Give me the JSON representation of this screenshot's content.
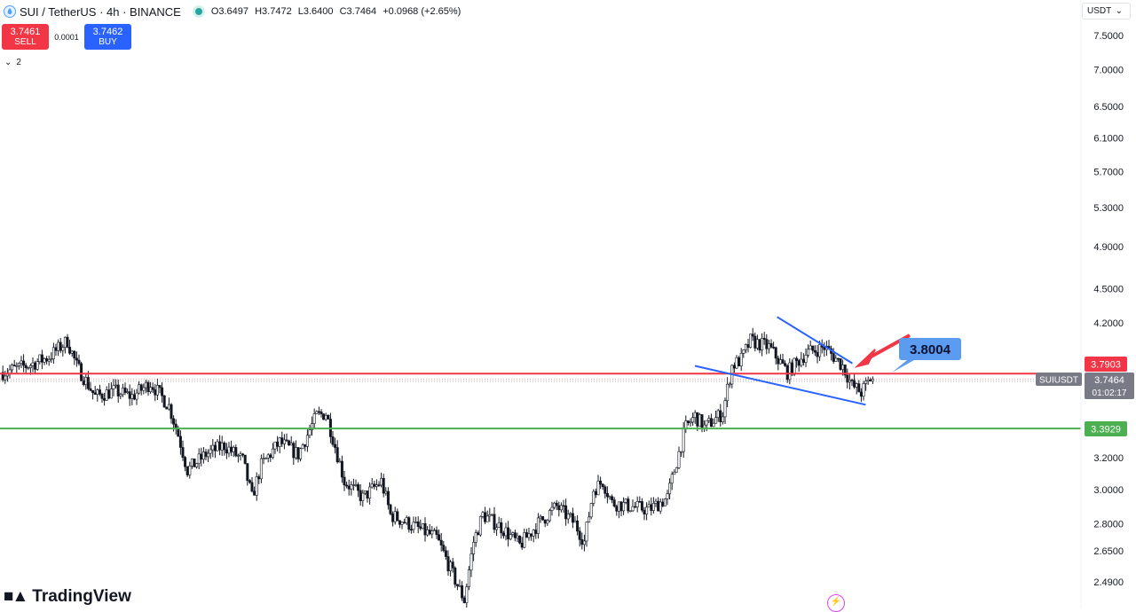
{
  "header": {
    "title": "SUI / TetherUS · 4h · BINANCE",
    "ohlc": {
      "o": "O3.6497",
      "h": "H3.7472",
      "l": "L3.6400",
      "c": "C3.7464",
      "chg": "+0.0968 (+2.65%)"
    }
  },
  "trade": {
    "sell_price": "3.7461",
    "sell_label": "SELL",
    "spread": "0.0001",
    "buy_price": "3.7462",
    "buy_label": "BUY"
  },
  "collapse_count": "2",
  "currency": "USDT",
  "brand": "TradingView",
  "colors": {
    "up": "#131722",
    "resistance": "#f23645",
    "support": "#4caf50",
    "trendline": "#2962ff",
    "annotation_box": "#5b9cf0",
    "arrow": "#f23645",
    "price_tag": "#787b86"
  },
  "chart_data": {
    "type": "candlestick",
    "symbol": "SUIUSDT",
    "interval": "4h",
    "y_scale": "log",
    "ylim": [
      2.35,
      7.8
    ],
    "y_ticks": [
      "7.5000",
      "7.0000",
      "6.5000",
      "6.1000",
      "5.7000",
      "5.3000",
      "4.9000",
      "4.5000",
      "4.2000",
      "3.2000",
      "3.0000",
      "2.8000",
      "2.6500",
      "2.4900"
    ],
    "horizontal_lines": [
      {
        "name": "resistance",
        "price": 3.7903,
        "label": "3.7903",
        "color": "#f23645"
      },
      {
        "name": "support",
        "price": 3.3929,
        "label": "3.3929",
        "color": "#4caf50"
      }
    ],
    "last_price": {
      "ticker": "SUIUSDT",
      "price": "3.7464",
      "countdown": "01:02:17"
    },
    "annotation": {
      "text": "3.8004"
    },
    "trendlines": [
      {
        "name": "upper-wedge",
        "from": [
          168,
          4.25
        ],
        "to": [
          192,
          3.87
        ]
      },
      {
        "name": "lower-wedge",
        "from": [
          155,
          3.85
        ],
        "to": [
          192,
          3.56
        ]
      }
    ],
    "price_path": [
      [
        0,
        3.8
      ],
      [
        6,
        3.86
      ],
      [
        10,
        3.92
      ],
      [
        14,
        4.05
      ],
      [
        16,
        3.85
      ],
      [
        20,
        3.62
      ],
      [
        24,
        3.66
      ],
      [
        28,
        3.62
      ],
      [
        32,
        3.72
      ],
      [
        36,
        3.55
      ],
      [
        38,
        3.35
      ],
      [
        40,
        3.12
      ],
      [
        44,
        3.22
      ],
      [
        48,
        3.28
      ],
      [
        52,
        3.18
      ],
      [
        54,
        2.95
      ],
      [
        56,
        3.15
      ],
      [
        60,
        3.3
      ],
      [
        64,
        3.22
      ],
      [
        68,
        3.48
      ],
      [
        70,
        3.5
      ],
      [
        74,
        3.05
      ],
      [
        78,
        2.95
      ],
      [
        82,
        3.05
      ],
      [
        84,
        2.85
      ],
      [
        88,
        2.8
      ],
      [
        94,
        2.72
      ],
      [
        98,
        2.5
      ],
      [
        100,
        2.4
      ],
      [
        102,
        2.7
      ],
      [
        104,
        2.85
      ],
      [
        108,
        2.78
      ],
      [
        112,
        2.68
      ],
      [
        116,
        2.8
      ],
      [
        120,
        2.9
      ],
      [
        124,
        2.8
      ],
      [
        126,
        2.7
      ],
      [
        128,
        3.0
      ],
      [
        130,
        3.05
      ],
      [
        132,
        2.92
      ],
      [
        136,
        2.9
      ],
      [
        140,
        2.88
      ],
      [
        144,
        2.95
      ],
      [
        148,
        3.4
      ],
      [
        150,
        3.48
      ],
      [
        152,
        3.4
      ],
      [
        156,
        3.5
      ],
      [
        158,
        3.85
      ],
      [
        160,
        3.9
      ],
      [
        162,
        4.05
      ],
      [
        166,
        4.0
      ],
      [
        170,
        3.8
      ],
      [
        174,
        3.95
      ],
      [
        178,
        4.0
      ],
      [
        182,
        3.85
      ],
      [
        184,
        3.7
      ],
      [
        186,
        3.65
      ],
      [
        188,
        3.75
      ]
    ]
  }
}
